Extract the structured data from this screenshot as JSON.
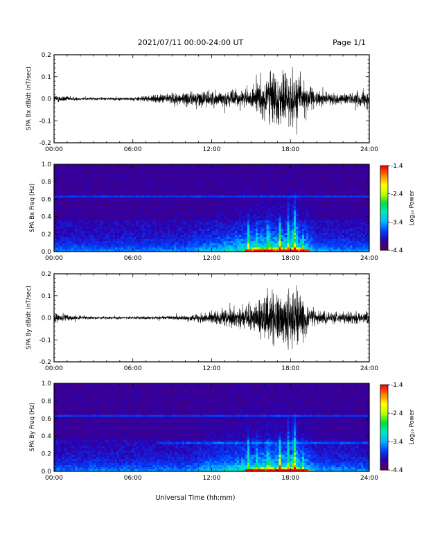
{
  "header": {
    "title": "2021/07/11  00:00-24:00 UT",
    "page": "Page 1/1"
  },
  "footer": {
    "xlabel": "Universal Time (hh:mm)"
  },
  "colorbar": {
    "label": "Log₁₀ Power",
    "ticks": [
      "-1.4",
      "-2.4",
      "-3.4",
      "-4.4"
    ],
    "range": [
      -4.4,
      -1.4
    ],
    "colormap": [
      "#5a005a",
      "#2a00b0",
      "#0040ff",
      "#00b8ff",
      "#00e8c0",
      "#00e040",
      "#c0ff00",
      "#ffff00",
      "#ff8000",
      "#ff0000"
    ]
  },
  "chart_data": [
    {
      "type": "line",
      "ylabel": "SPA Bx dB/dt (nT/sec)",
      "xlim": [
        0,
        24
      ],
      "ylim": [
        -0.2,
        0.2
      ],
      "x_ticks": [
        "00:00",
        "06:00",
        "12:00",
        "18:00",
        "24:00"
      ],
      "y_ticks": [
        "0.2",
        "0.1",
        "0.0",
        "-0.1",
        "-0.2"
      ],
      "envelope": {
        "x_hours": [
          0,
          1,
          2,
          4,
          6,
          8,
          9,
          10,
          11,
          12,
          13,
          14,
          15,
          15.5,
          16,
          16.5,
          17,
          17.5,
          18,
          18.5,
          19,
          19.5,
          20,
          21,
          22,
          23,
          24
        ],
        "amplitude": [
          0.03,
          0.02,
          0.012,
          0.01,
          0.012,
          0.03,
          0.045,
          0.05,
          0.06,
          0.06,
          0.055,
          0.065,
          0.07,
          0.1,
          0.2,
          0.2,
          0.2,
          0.2,
          0.2,
          0.2,
          0.16,
          0.08,
          0.06,
          0.04,
          0.04,
          0.05,
          0.06
        ]
      }
    },
    {
      "type": "heatmap",
      "ylabel": "SPA Bx Freq (Hz)",
      "xlim": [
        0,
        24
      ],
      "ylim": [
        0,
        1.0
      ],
      "x_ticks": [
        "00:00",
        "06:00",
        "12:00",
        "18:00",
        "24:00"
      ],
      "y_ticks": [
        "1.0",
        "0.8",
        "0.6",
        "0.4",
        "0.2",
        "0.0"
      ],
      "zlim": [
        -4.4,
        -1.4
      ]
    },
    {
      "type": "line",
      "ylabel": "SPA By dB/dt (nT/sec)",
      "xlim": [
        0,
        24
      ],
      "ylim": [
        -0.2,
        0.2
      ],
      "x_ticks": [
        "00:00",
        "06:00",
        "12:00",
        "18:00",
        "24:00"
      ],
      "y_ticks": [
        "0.2",
        "0.1",
        "0.0",
        "-0.1",
        "-0.2"
      ],
      "envelope": {
        "x_hours": [
          0,
          1,
          2,
          4,
          6,
          8,
          9,
          10,
          11,
          12,
          13,
          14,
          15,
          15.5,
          16,
          16.5,
          17,
          17.5,
          18,
          18.5,
          19,
          19.5,
          20,
          21,
          22,
          23,
          24
        ],
        "amplitude": [
          0.03,
          0.025,
          0.012,
          0.01,
          0.01,
          0.012,
          0.015,
          0.02,
          0.03,
          0.05,
          0.06,
          0.07,
          0.09,
          0.13,
          0.2,
          0.2,
          0.2,
          0.2,
          0.2,
          0.2,
          0.15,
          0.07,
          0.05,
          0.04,
          0.04,
          0.05,
          0.05
        ]
      }
    },
    {
      "type": "heatmap",
      "ylabel": "SPA By Freq (Hz)",
      "xlim": [
        0,
        24
      ],
      "ylim": [
        0,
        1.0
      ],
      "x_ticks": [
        "00:00",
        "06:00",
        "12:00",
        "18:00",
        "24:00"
      ],
      "y_ticks": [
        "1.0",
        "0.8",
        "0.6",
        "0.4",
        "0.2",
        "0.0"
      ],
      "zlim": [
        -4.4,
        -1.4
      ]
    }
  ]
}
